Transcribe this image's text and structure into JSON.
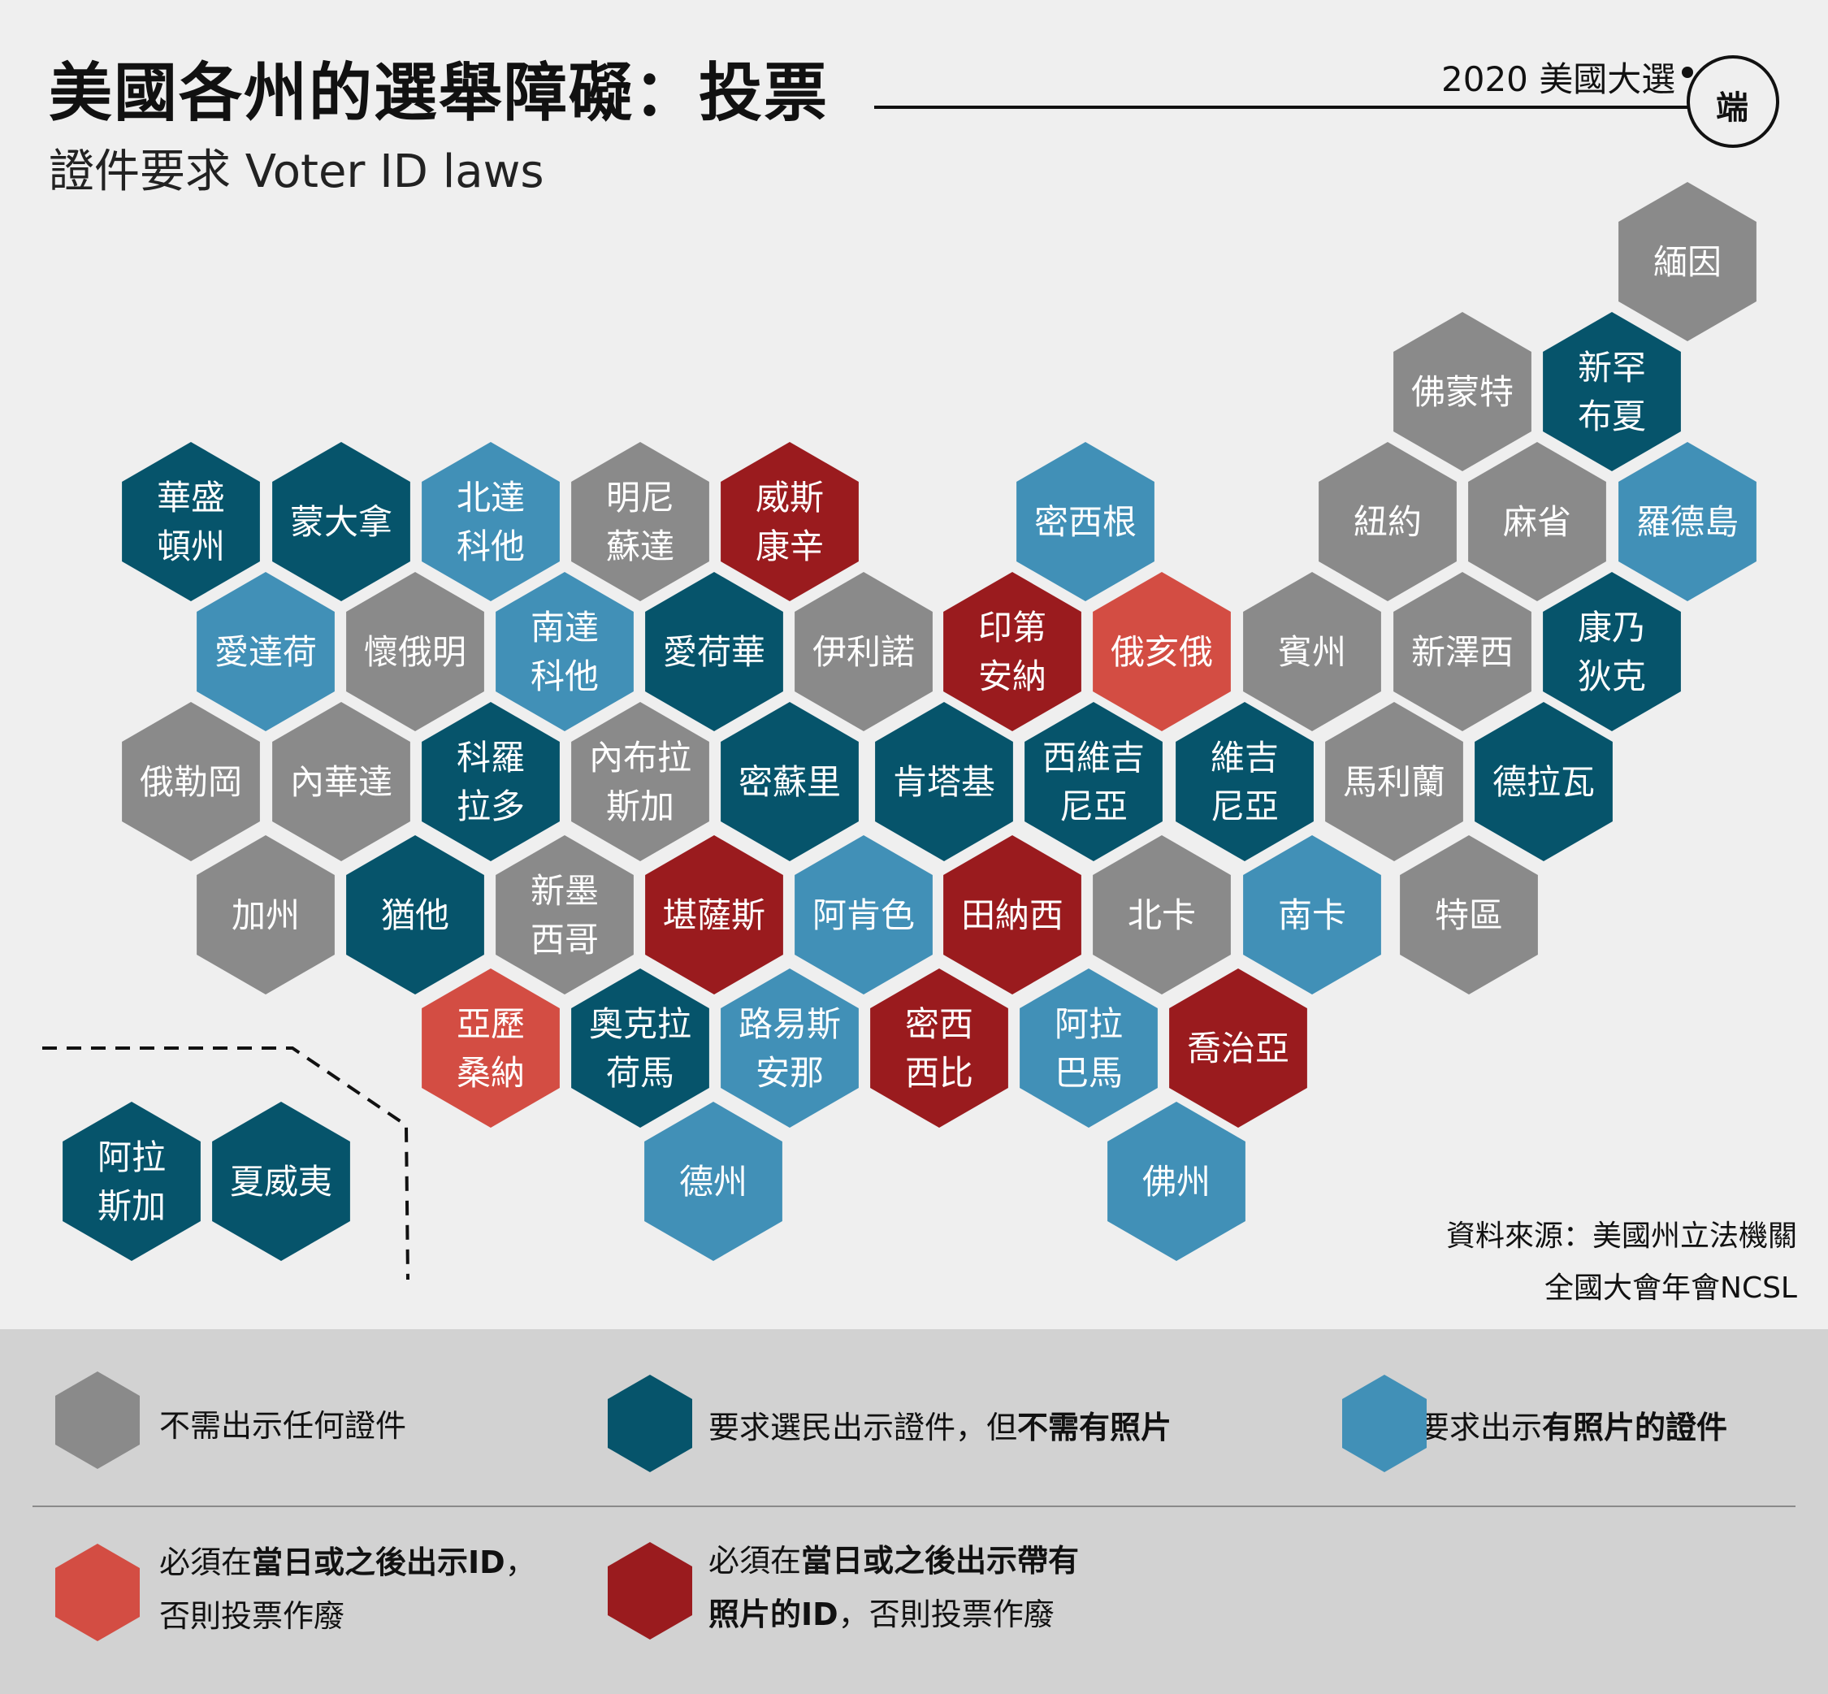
{
  "title": "美國各州的選舉障礙：投票",
  "subtitle": "證件要求 Voter ID laws",
  "series_tag": "2020 美國大選",
  "logo_text": "端",
  "colors": {
    "no_id": "#8a8a8a",
    "id_no_photo": "#06546b",
    "photo_id": "#4190b7",
    "id_later": "#d34d43",
    "photo_id_later": "#9a1b1e",
    "background": "#efefef",
    "legend_band": "#d2d2d2"
  },
  "states": [
    {
      "label": [
        "緬因"
      ],
      "category": "no_id"
    },
    {
      "label": [
        "佛蒙特"
      ],
      "category": "no_id"
    },
    {
      "label": [
        "新罕",
        "布夏"
      ],
      "category": "id_no_photo"
    },
    {
      "label": [
        "華盛",
        "頓州"
      ],
      "category": "id_no_photo"
    },
    {
      "label": [
        "蒙大拿"
      ],
      "category": "id_no_photo"
    },
    {
      "label": [
        "北達",
        "科他"
      ],
      "category": "photo_id"
    },
    {
      "label": [
        "明尼",
        "蘇達"
      ],
      "category": "no_id"
    },
    {
      "label": [
        "威斯",
        "康辛"
      ],
      "category": "photo_id_later"
    },
    {
      "label": [
        "密西根"
      ],
      "category": "photo_id"
    },
    {
      "label": [
        "紐約"
      ],
      "category": "no_id"
    },
    {
      "label": [
        "麻省"
      ],
      "category": "no_id"
    },
    {
      "label": [
        "羅德島"
      ],
      "category": "photo_id"
    },
    {
      "label": [
        "愛達荷"
      ],
      "category": "photo_id"
    },
    {
      "label": [
        "懷俄明"
      ],
      "category": "no_id"
    },
    {
      "label": [
        "南達",
        "科他"
      ],
      "category": "photo_id"
    },
    {
      "label": [
        "愛荷華"
      ],
      "category": "id_no_photo"
    },
    {
      "label": [
        "伊利諾"
      ],
      "category": "no_id"
    },
    {
      "label": [
        "印第",
        "安納"
      ],
      "category": "photo_id_later"
    },
    {
      "label": [
        "俄亥俄"
      ],
      "category": "id_later"
    },
    {
      "label": [
        "賓州"
      ],
      "category": "no_id"
    },
    {
      "label": [
        "新澤西"
      ],
      "category": "no_id"
    },
    {
      "label": [
        "康乃",
        "狄克"
      ],
      "category": "id_no_photo"
    },
    {
      "label": [
        "俄勒岡"
      ],
      "category": "no_id"
    },
    {
      "label": [
        "內華達"
      ],
      "category": "no_id"
    },
    {
      "label": [
        "科羅",
        "拉多"
      ],
      "category": "id_no_photo"
    },
    {
      "label": [
        "內布拉",
        "斯加"
      ],
      "category": "no_id"
    },
    {
      "label": [
        "密蘇里"
      ],
      "category": "id_no_photo"
    },
    {
      "label": [
        "肯塔基"
      ],
      "category": "id_no_photo"
    },
    {
      "label": [
        "西維吉",
        "尼亞"
      ],
      "category": "id_no_photo"
    },
    {
      "label": [
        "維吉",
        "尼亞"
      ],
      "category": "id_no_photo"
    },
    {
      "label": [
        "馬利蘭"
      ],
      "category": "no_id"
    },
    {
      "label": [
        "德拉瓦"
      ],
      "category": "id_no_photo"
    },
    {
      "label": [
        "加州"
      ],
      "category": "no_id"
    },
    {
      "label": [
        "猶他"
      ],
      "category": "id_no_photo"
    },
    {
      "label": [
        "新墨",
        "西哥"
      ],
      "category": "no_id"
    },
    {
      "label": [
        "堪薩斯"
      ],
      "category": "photo_id_later"
    },
    {
      "label": [
        "阿肯色"
      ],
      "category": "photo_id"
    },
    {
      "label": [
        "田納西"
      ],
      "category": "photo_id_later"
    },
    {
      "label": [
        "北卡"
      ],
      "category": "no_id"
    },
    {
      "label": [
        "南卡"
      ],
      "category": "photo_id"
    },
    {
      "label": [
        "特區"
      ],
      "category": "no_id"
    },
    {
      "label": [
        "亞歷",
        "桑納"
      ],
      "category": "id_later"
    },
    {
      "label": [
        "奧克拉",
        "荷馬"
      ],
      "category": "id_no_photo"
    },
    {
      "label": [
        "路易斯",
        "安那"
      ],
      "category": "photo_id"
    },
    {
      "label": [
        "密西",
        "西比"
      ],
      "category": "photo_id_later"
    },
    {
      "label": [
        "阿拉",
        "巴馬"
      ],
      "category": "photo_id"
    },
    {
      "label": [
        "喬治亞"
      ],
      "category": "photo_id_later"
    },
    {
      "label": [
        "德州"
      ],
      "category": "photo_id"
    },
    {
      "label": [
        "佛州"
      ],
      "category": "photo_id"
    },
    {
      "label": [
        "阿拉",
        "斯加"
      ],
      "category": "id_no_photo"
    },
    {
      "label": [
        "夏威夷"
      ],
      "category": "id_no_photo"
    }
  ],
  "source": {
    "line1": "資料來源：美國州立法機關",
    "line2": "全國大會年會NCSL"
  },
  "legend": [
    {
      "category": "no_id",
      "parts": [
        {
          "text": "不需出示任何證件",
          "bold": false
        }
      ]
    },
    {
      "category": "id_no_photo",
      "parts": [
        {
          "text": "要求選民出示證件，但",
          "bold": false
        },
        {
          "text": "不需有照片",
          "bold": true
        }
      ]
    },
    {
      "category": "photo_id",
      "parts": [
        {
          "text": "要求出示",
          "bold": false
        },
        {
          "text": "有照片的證件",
          "bold": true
        }
      ]
    },
    {
      "category": "id_later",
      "parts": [
        {
          "text": "必須在",
          "bold": false
        },
        {
          "text": "當日或之後出示ID",
          "bold": true
        },
        {
          "text": "，",
          "bold": false
        },
        {
          "text": "\n",
          "bold": false
        },
        {
          "text": "否則投票作廢",
          "bold": false
        }
      ]
    },
    {
      "category": "photo_id_later",
      "parts": [
        {
          "text": "必須在",
          "bold": false
        },
        {
          "text": "當日或之後出示帶有",
          "bold": true
        },
        {
          "text": "\n",
          "bold": false
        },
        {
          "text": "照片的ID",
          "bold": true
        },
        {
          "text": "，否則投票作廢",
          "bold": false
        }
      ]
    }
  ]
}
